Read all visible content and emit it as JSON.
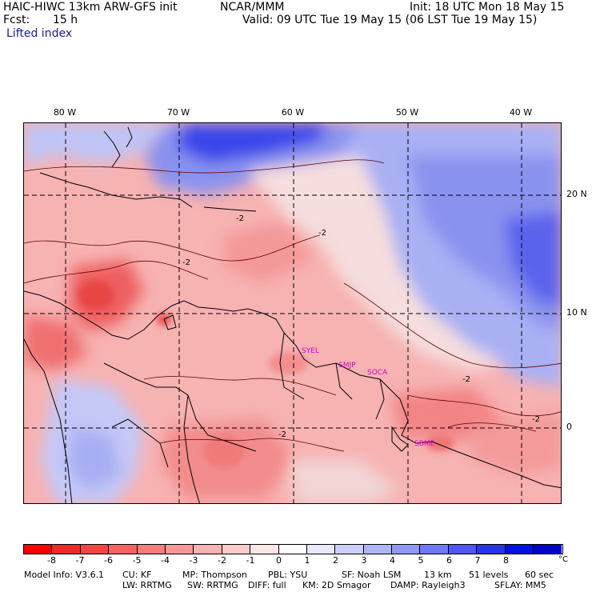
{
  "header": {
    "model_title": "HAIC-HIWC 13km ARW-GFS init",
    "org": "NCAR/MMM",
    "init": "Init: 18 UTC Mon 18 May 15",
    "fcst_label": "Fcst:",
    "fcst_value": "15 h",
    "valid": "Valid: 09 UTC Tue 19 May 15 (06 LST Tue 19 May 15)",
    "field_name": "Lifted index"
  },
  "map": {
    "lon_labels": [
      "80 W",
      "70 W",
      "60 W",
      "50 W",
      "40 W"
    ],
    "lat_labels": [
      "20 N",
      "10 N",
      "0"
    ],
    "contour_labels": [
      "-2",
      "-2",
      "-2",
      "-2",
      "-2",
      "-2"
    ],
    "stations": [
      "SYEL",
      "SMJP",
      "SOCA",
      "SBME"
    ]
  },
  "colorbar": {
    "ticks": [
      "-8",
      "-7",
      "-6",
      "-5",
      "-4",
      "-3",
      "-2",
      "-1",
      "0",
      "1",
      "2",
      "3",
      "4",
      "5",
      "6",
      "7",
      "8"
    ],
    "unit": "°C",
    "colors": [
      "#ff0000",
      "#f22828",
      "#f04646",
      "#f26464",
      "#f47e7e",
      "#f79898",
      "#fab2b2",
      "#fccccc",
      "#fee6e6",
      "#ffffff",
      "#e6e8fb",
      "#ccd0f8",
      "#b0b6f5",
      "#9098f2",
      "#707af0",
      "#4e58ee",
      "#2a34ec",
      "#0010e6",
      "#0000cc"
    ]
  },
  "model_info": {
    "line1": [
      "Model Info: V3.6.1",
      "CU: KF",
      "MP: Thompson",
      "PBL: YSU",
      "SF: Noah LSM",
      "13 km",
      "51 levels",
      "60 sec"
    ],
    "line2": [
      "LW: RRTMG",
      "SW: RRTMG",
      "DIFF: full",
      "KM: 2D Smagor",
      "DAMP: Rayleigh3",
      "SFLAY: MM5"
    ]
  }
}
